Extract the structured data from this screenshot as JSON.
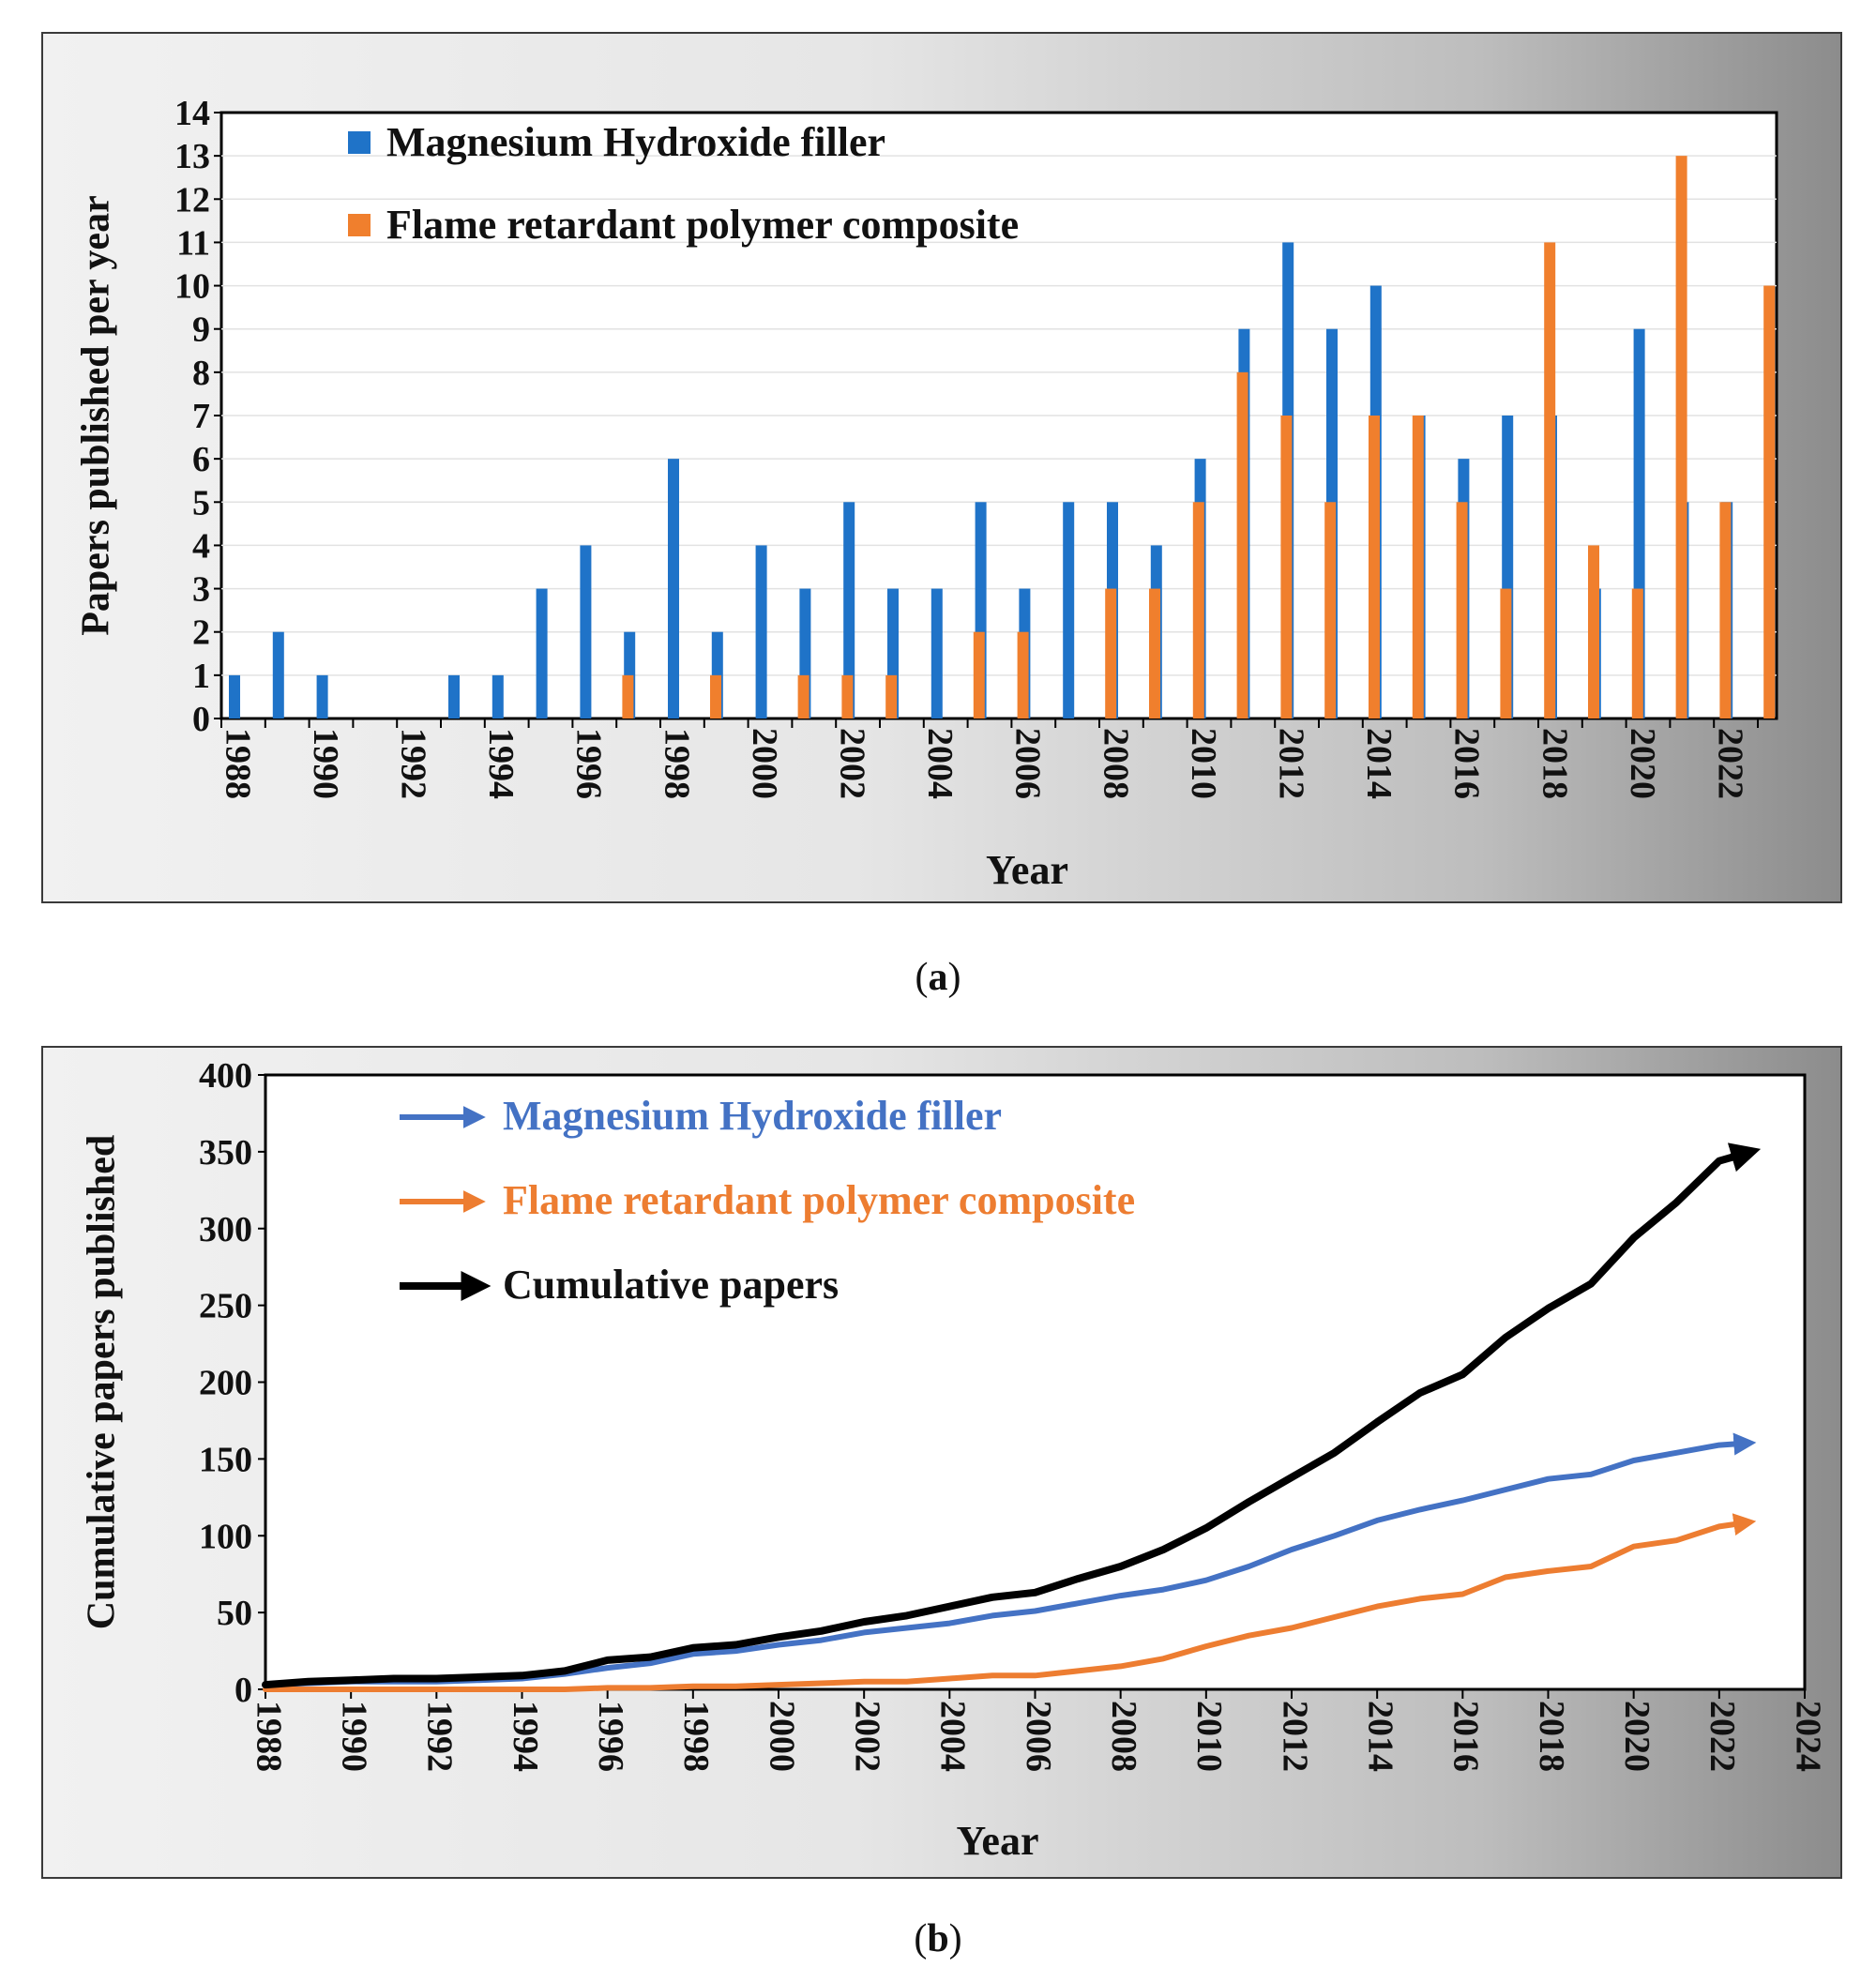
{
  "chart_data": [
    {
      "id": "a",
      "type": "bar",
      "caption_letter": "a",
      "xlabel": "Year",
      "ylabel": "Papers published  per year",
      "ylim": [
        0,
        14
      ],
      "yticks": [
        "0",
        "1",
        "2",
        "3",
        "4",
        "5",
        "6",
        "7",
        "8",
        "9",
        "10",
        "11",
        "12",
        "13",
        "14"
      ],
      "xtick_labels": [
        "1988",
        "1990",
        "1992",
        "1994",
        "1996",
        "1998",
        "2000",
        "2002",
        "2004",
        "2006",
        "2008",
        "2010",
        "2012",
        "2014",
        "2016",
        "2018",
        "2020",
        "2022"
      ],
      "categories": [
        "1988",
        "1989",
        "1990",
        "1991",
        "1992",
        "1993",
        "1994",
        "1995",
        "1996",
        "1997",
        "1998",
        "1999",
        "2000",
        "2001",
        "2002",
        "2003",
        "2004",
        "2005",
        "2006",
        "2007",
        "2008",
        "2009",
        "2010",
        "2011",
        "2012",
        "2013",
        "2014",
        "2015",
        "2016",
        "2017",
        "2018",
        "2019",
        "2020",
        "2021",
        "2022"
      ],
      "grid": true,
      "legend_position": "top-left",
      "series": [
        {
          "name": "Magnesium Hydroxide filler",
          "color": "#1f73c8",
          "values": [
            1,
            2,
            1,
            0,
            0,
            1,
            1,
            3,
            4,
            2,
            6,
            2,
            4,
            3,
            5,
            3,
            3,
            5,
            3,
            5,
            5,
            4,
            6,
            9,
            11,
            9,
            10,
            7,
            6,
            7,
            7,
            3,
            9,
            5,
            5
          ]
        },
        {
          "name": "Flame retardant polymer composite",
          "color": "#f07f2d",
          "values": [
            0,
            0,
            0,
            0,
            0,
            0,
            0,
            0,
            1,
            0,
            1,
            0,
            1,
            1,
            1,
            0,
            2,
            2,
            0,
            3,
            3,
            5,
            8,
            7,
            5,
            7,
            7,
            5,
            3,
            11,
            4,
            3,
            13,
            5,
            10
          ]
        }
      ]
    },
    {
      "id": "b",
      "type": "line",
      "caption_letter": "b",
      "xlabel": "Year",
      "ylabel": "Cumulative papers published",
      "xlim": [
        1988,
        2024
      ],
      "ylim": [
        0,
        400
      ],
      "yticks": [
        "0",
        "50",
        "100",
        "150",
        "200",
        "250",
        "300",
        "350",
        "400"
      ],
      "xtick_labels": [
        "1988",
        "1990",
        "1992",
        "1994",
        "1996",
        "1998",
        "2000",
        "2002",
        "2004",
        "2006",
        "2008",
        "2010",
        "2012",
        "2014",
        "2016",
        "2018",
        "2020",
        "2022",
        "2024"
      ],
      "grid": false,
      "legend_position": "top-left",
      "x": [
        1988,
        1989,
        1990,
        1991,
        1992,
        1993,
        1994,
        1995,
        1996,
        1997,
        1998,
        1999,
        2000,
        2001,
        2002,
        2003,
        2004,
        2005,
        2006,
        2007,
        2008,
        2009,
        2010,
        2011,
        2012,
        2013,
        2014,
        2015,
        2016,
        2017,
        2018,
        2019,
        2020,
        2021,
        2022,
        2022.5
      ],
      "series": [
        {
          "name": "Magnesium Hydroxide filler",
          "color": "#4472c4",
          "values": [
            3,
            4,
            5,
            5,
            5,
            6,
            7,
            10,
            14,
            17,
            23,
            25,
            29,
            32,
            37,
            40,
            43,
            48,
            51,
            56,
            61,
            65,
            71,
            80,
            91,
            100,
            110,
            117,
            123,
            130,
            137,
            140,
            149,
            154,
            159,
            160
          ]
        },
        {
          "name": "Flame retardant polymer composite",
          "color": "#ed7d31",
          "values": [
            0,
            0,
            0,
            0,
            0,
            0,
            0,
            0,
            1,
            1,
            2,
            2,
            3,
            4,
            5,
            5,
            7,
            9,
            9,
            12,
            15,
            20,
            28,
            35,
            40,
            47,
            54,
            59,
            62,
            73,
            77,
            80,
            93,
            97,
            106,
            108
          ]
        },
        {
          "name": "Cumulative papers",
          "color": "#000000",
          "values": [
            3,
            5,
            6,
            7,
            7,
            8,
            9,
            12,
            19,
            21,
            27,
            29,
            34,
            38,
            44,
            48,
            54,
            60,
            63,
            72,
            80,
            91,
            105,
            122,
            138,
            154,
            174,
            193,
            205,
            229,
            248,
            264,
            294,
            317,
            344,
            348
          ]
        }
      ]
    }
  ]
}
